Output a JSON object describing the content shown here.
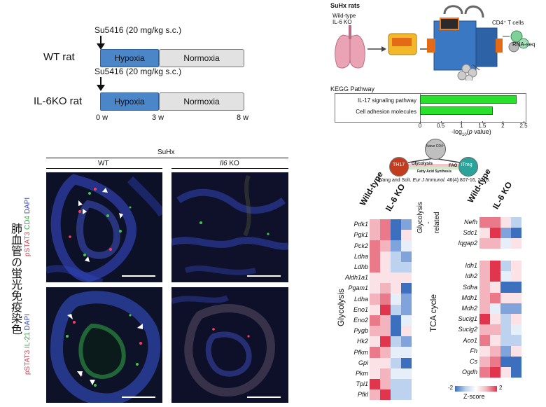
{
  "timeline": {
    "wt_label": "WT rat",
    "ko_label": "IL-6KO rat",
    "injection_top": "Su5416 (20 mg/kg  s.c.)",
    "injection_bottom": "Su5416 (20 mg/kg  s.c.)",
    "hypoxia": "Hypoxia",
    "normoxia": "Normoxia",
    "ticks": [
      "0 w",
      "3 w",
      "8 w"
    ]
  },
  "schematic": {
    "title": "SuHx rats",
    "subtitle_1": "Wild-type",
    "subtitle_2": "IL-6 KO",
    "cd4_label": "CD4⁺ T cells",
    "rnaseq_label": "RNA-seq"
  },
  "kegg": {
    "title": "KEGG Pathway",
    "xlabel": "-log10(p value)",
    "chart_data": {
      "type": "bar",
      "categories": [
        "IL-17 signaling pathway",
        "Cell adhesion molecules"
      ],
      "values": [
        2.3,
        1.72
      ],
      "xlim": [
        0,
        2.5
      ],
      "ticks": [
        "0",
        "0.5",
        "1",
        "1.5",
        "2",
        "2.5"
      ],
      "color": "#29e02c"
    }
  },
  "pathway": {
    "th17": "TH17",
    "naive": "Naive CD4⁺",
    "itreg": "iTreg",
    "glycolysis": "Glycolysis",
    "fao": "FAO",
    "fas": "Fatty Acid Synthesis",
    "citation": "Wang and Solt. Eur J Immunol. 46(4):807-16, 2016."
  },
  "micro": {
    "suhx": "SuHx",
    "wt": "WT",
    "ko": "Il6 KO",
    "stain_top": [
      "pSTAT3",
      " CD4",
      " DAPI"
    ],
    "stain_bottom": [
      "pSTAT3",
      " IL-21",
      " DAPI"
    ],
    "side_title": "肺血管の蛍光免疫染色",
    "colors": {
      "pstat3": "#e0384f",
      "green": "#2aa43a",
      "dapi": "#2b3fd1"
    }
  },
  "heatmap": {
    "col_labels": [
      "Wild-type",
      "IL-6 KO"
    ],
    "glyco_title": "Glycolysis",
    "glyco_genes": [
      "Pdk1",
      "Pgk1",
      "Pck2",
      "Ldha",
      "Ldhb",
      "Aldh1a1",
      "Pgam1",
      "Ldha",
      "Eno1",
      "Eno2",
      "Pygb",
      "Hk2",
      "Pfkm",
      "Gpi",
      "Pkm",
      "Tpi1",
      "Pfkl"
    ],
    "glyrel_title": "Glycolysis -related",
    "glyrel_genes": [
      "Nefh",
      "Sdc1",
      "Iqgap2"
    ],
    "tca_title": "TCA cycle",
    "tca_genes": [
      "Idh1",
      "Idh2",
      "Sdha",
      "Mdh1",
      "Mdh2",
      "Suclg1",
      "Suclg2",
      "Aco1",
      "Fh",
      "Cs",
      "Ogdh"
    ],
    "legend_min": "-2",
    "legend_max": "2",
    "legend_label": "Z-score"
  }
}
